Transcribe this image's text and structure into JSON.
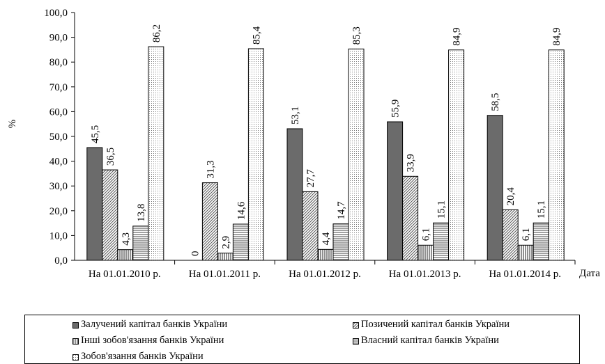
{
  "chart_data": {
    "type": "bar",
    "title": "",
    "ylabel": "%",
    "xlabel": "Дата",
    "ylim": [
      0,
      100
    ],
    "yticks": [
      "0,0",
      "10,0",
      "20,0",
      "30,0",
      "40,0",
      "50,0",
      "60,0",
      "70,0",
      "80,0",
      "90,0",
      "100,0"
    ],
    "categories": [
      "На 01.01.2010 р.",
      "На 01.01.2011 р.",
      "На 01.01.2012 р.",
      "На 01.01.2013 р.",
      "На 01.01.2014 р."
    ],
    "series": [
      {
        "name": "Залучений капітал банків України",
        "pattern": "solid-gray",
        "color": "#6b6b6b",
        "values": [
          45.5,
          0,
          53.1,
          55.9,
          58.5
        ],
        "labels": [
          "45,5",
          "0",
          "53,1",
          "55,9",
          "58,5"
        ]
      },
      {
        "name": "Позичений капітал банків України",
        "pattern": "diagonal-lines",
        "values": [
          36.5,
          31.3,
          27.7,
          33.9,
          20.4
        ],
        "labels": [
          "36,5",
          "31,3",
          "27,7",
          "33,9",
          "20,4"
        ]
      },
      {
        "name": "Інші зобов'язання банків України",
        "pattern": "vertical-lines",
        "values": [
          4.3,
          2.9,
          4.4,
          6.1,
          6.1
        ],
        "labels": [
          "4,3",
          "2,9",
          "4,4",
          "6,1",
          "6,1"
        ]
      },
      {
        "name": "Власний капітал банків України",
        "pattern": "horizontal-lines",
        "values": [
          13.8,
          14.6,
          14.7,
          15.1,
          15.1
        ],
        "labels": [
          "13,8",
          "14,6",
          "14,7",
          "15,1",
          "15,1"
        ]
      },
      {
        "name": "Зобов'язання банків України",
        "pattern": "dots",
        "values": [
          86.2,
          85.4,
          85.3,
          84.9,
          84.9
        ],
        "labels": [
          "86,2",
          "85,4",
          "85,3",
          "84,9",
          "84,9"
        ]
      }
    ],
    "grid": false,
    "legend_position": "bottom"
  }
}
